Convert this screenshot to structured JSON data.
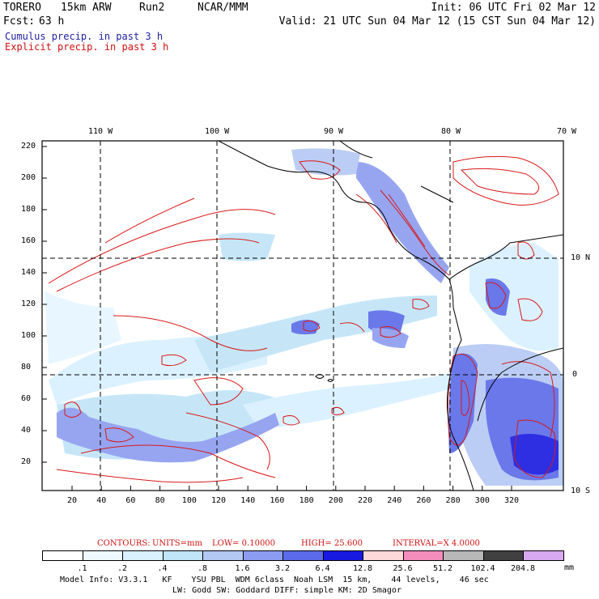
{
  "header": {
    "model": "TORERO",
    "grid": "15km ARW",
    "run": "Run2",
    "org": "NCAR/MMM",
    "init": "Init: 06 UTC Fri 02 Mar 12",
    "fcst_label": "Fcst:",
    "fcst_value": "63 h",
    "valid": "Valid: 21 UTC Sun 04 Mar 12 (15 CST Sun 04 Mar 12)",
    "cumulus": "Cumulus precip. in past 3 h",
    "explicit": "Explicit precip. in past 3 h"
  },
  "map": {
    "top_axis": [
      "110 W",
      "100 W",
      "90 W",
      "80 W",
      "70 W"
    ],
    "right_axis": [
      "10 N",
      "0",
      "10 S"
    ],
    "y_ticks": [
      "220",
      "200",
      "180",
      "160",
      "140",
      "120",
      "100",
      "80",
      "60",
      "40",
      "20"
    ],
    "x_ticks": [
      "20",
      "40",
      "60",
      "80",
      "100",
      "120",
      "140",
      "160",
      "180",
      "200",
      "220",
      "240",
      "260",
      "280",
      "300",
      "320"
    ]
  },
  "contours_line": {
    "contours": "CONTOURS:",
    "units": "UNITS=mm",
    "low": "LOW= 0.10000",
    "high": "HIGH= 25.600",
    "interval": "INTERVAL=X 4.0000"
  },
  "colorbar": {
    "labels": [
      ".1",
      ".2",
      ".4",
      ".8",
      "1.6",
      "3.2",
      "6.4",
      "12.8",
      "25.6",
      "51.2",
      "102.4",
      "204.8"
    ],
    "unit": "mm",
    "colors": [
      "#ffffff",
      "#eef8ff",
      "#d8f0ff",
      "#c0e4f8",
      "#b4c8f4",
      "#8c9cf0",
      "#5a6ae8",
      "#1818e0",
      "#fcd8d8",
      "#f48cbc",
      "#b8b8b8",
      "#404040",
      "#d8a8f0"
    ]
  },
  "footer": {
    "line1": "Model Info: V3.3.1   KF    YSU PBL  WDM 6class  Noah LSM  15 km,    44 levels,    46 sec",
    "line2": "LW: Godd SW: Goddard DIFF: simple KM: 2D Smagor"
  }
}
